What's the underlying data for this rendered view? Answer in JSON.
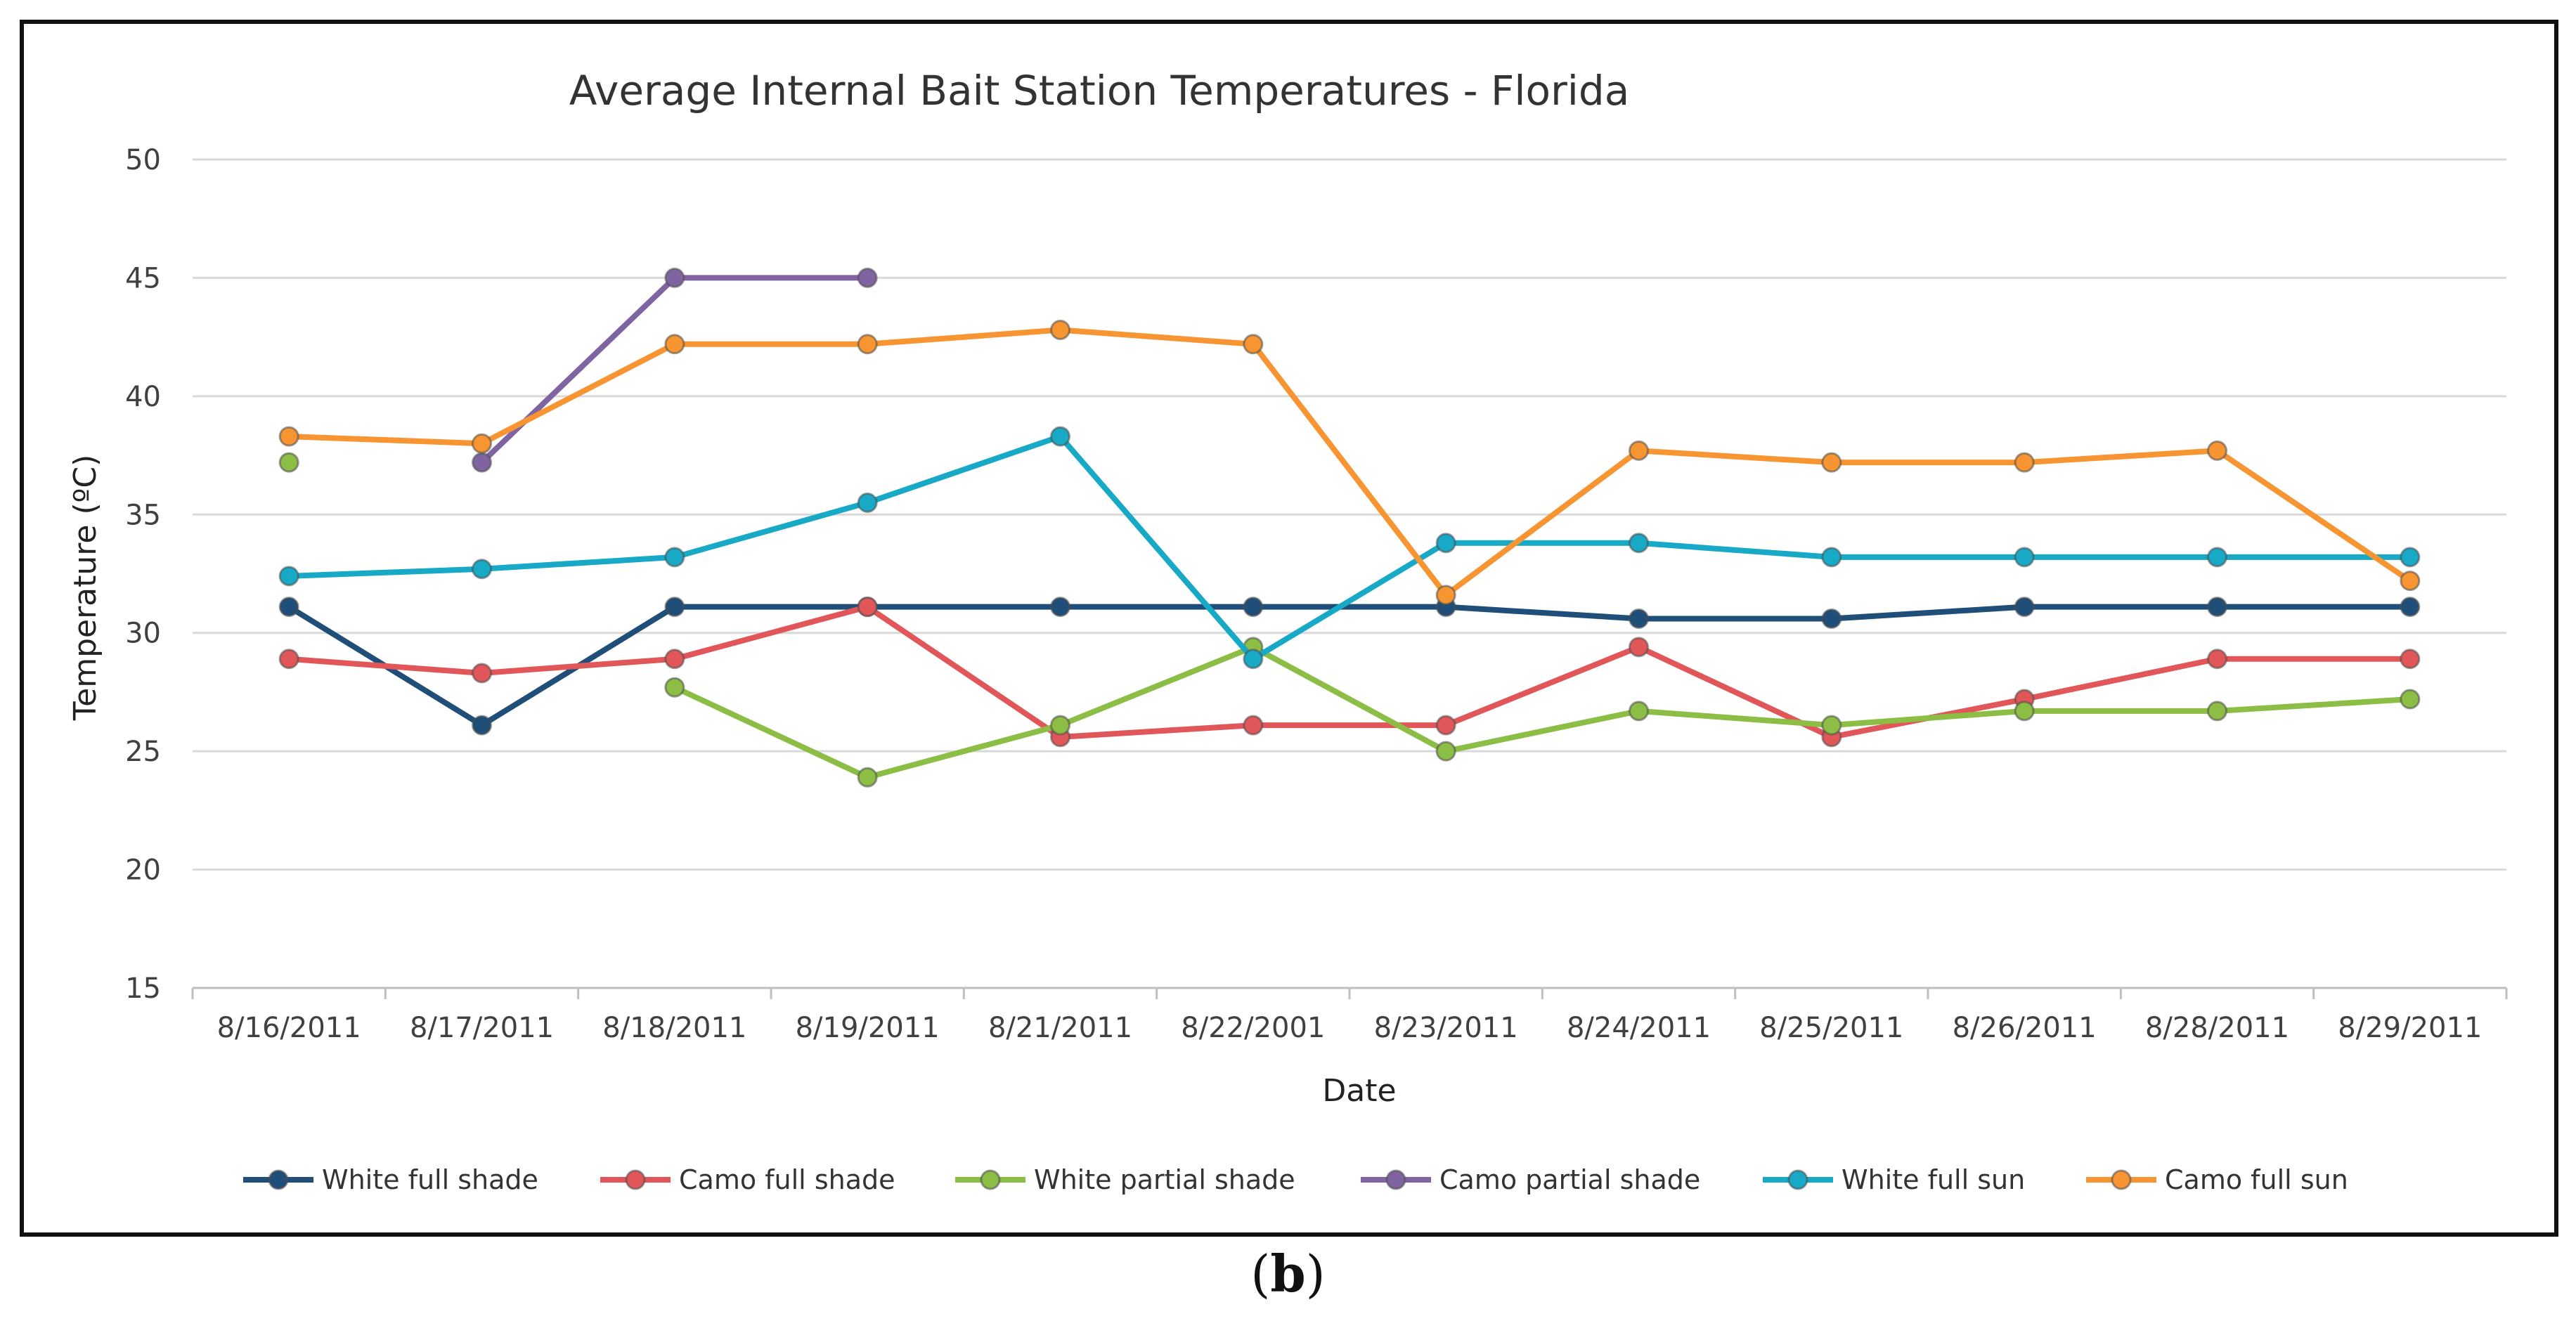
{
  "caption": {
    "open": "(",
    "letter": "b",
    "close": ")"
  },
  "chart_data": {
    "type": "line",
    "title": "Average Internal Bait Station Temperatures  - Florida",
    "xlabel": "Date",
    "ylabel": "Temperature (ºC)",
    "ylim": [
      15,
      50
    ],
    "yticks": [
      15,
      20,
      25,
      30,
      35,
      40,
      45,
      50
    ],
    "grid": true,
    "legend_position": "bottom",
    "categories": [
      "8/16/2011",
      "8/17/2011",
      "8/18/2011",
      "8/19/2011",
      "8/21/2011",
      "8/22/2001",
      "8/23/2011",
      "8/24/2011",
      "8/25/2011",
      "8/26/2011",
      "8/28/2011",
      "8/29/2011"
    ],
    "series": [
      {
        "name": "White full shade",
        "color": "#1f4e79",
        "values": [
          31.1,
          26.1,
          31.1,
          31.1,
          31.1,
          31.1,
          31.1,
          30.6,
          30.6,
          31.1,
          31.1,
          31.1
        ]
      },
      {
        "name": "Camo full shade",
        "color": "#e15759",
        "values": [
          28.9,
          28.3,
          28.9,
          31.1,
          25.6,
          26.1,
          26.1,
          29.4,
          25.6,
          27.2,
          28.9,
          28.9
        ]
      },
      {
        "name": "White partial shade",
        "color": "#8cbd45",
        "values": [
          37.2,
          null,
          27.7,
          23.9,
          26.1,
          29.4,
          25.0,
          26.7,
          26.1,
          26.7,
          26.7,
          27.2
        ]
      },
      {
        "name": "Camo partial shade",
        "color": "#8064a2",
        "values": [
          null,
          37.2,
          45.0,
          45.0,
          null,
          null,
          null,
          null,
          null,
          null,
          null,
          null
        ]
      },
      {
        "name": "White full sun",
        "color": "#17a9c6",
        "values": [
          32.4,
          32.7,
          33.2,
          35.5,
          38.3,
          28.9,
          33.8,
          33.8,
          33.2,
          33.2,
          33.2,
          33.2
        ]
      },
      {
        "name": "Camo full sun",
        "color": "#f79532",
        "values": [
          38.3,
          38.0,
          42.2,
          42.2,
          42.8,
          42.2,
          31.6,
          37.7,
          37.2,
          37.2,
          37.7,
          32.2
        ]
      }
    ]
  }
}
